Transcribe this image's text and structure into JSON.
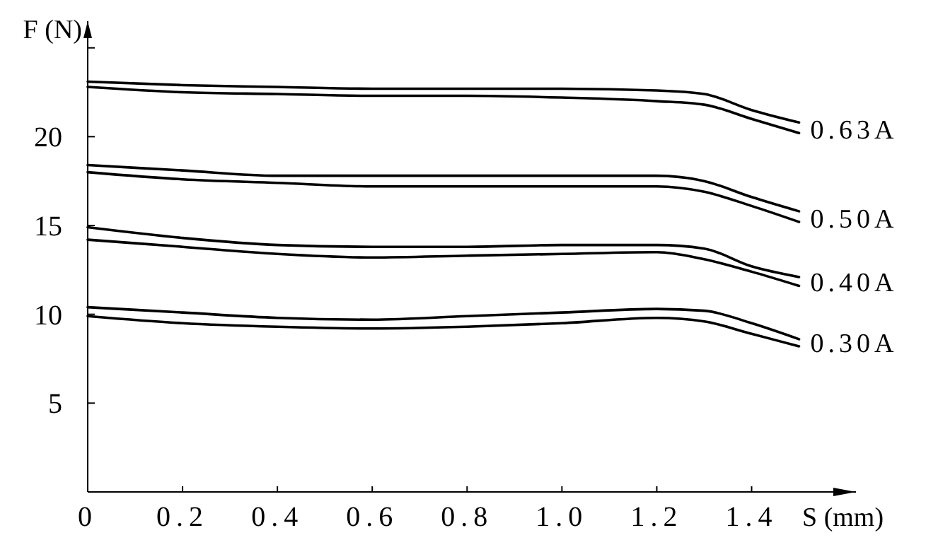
{
  "chart_data": {
    "type": "line",
    "xlabel": "S (mm)",
    "ylabel": "F (N)",
    "x": [
      0,
      0.2,
      0.4,
      0.6,
      0.8,
      1.0,
      1.2,
      1.3,
      1.4,
      1.5
    ],
    "xlim": [
      0,
      1.62
    ],
    "ylim": [
      0,
      26.5
    ],
    "xticks": [
      0,
      0.2,
      0.4,
      0.6,
      0.8,
      {
        "value": 1.0,
        "label": "1.0"
      },
      1.2,
      1.4
    ],
    "yticks": [
      5,
      10,
      15,
      20,
      {
        "value": 25,
        "label": null
      }
    ],
    "grid": false,
    "marker": "none",
    "line_style": "solid",
    "series": [
      {
        "color": "#000000",
        "values": [
          23.1,
          22.9,
          22.8,
          22.7,
          22.7,
          22.7,
          22.6,
          22.4,
          21.5,
          20.8
        ]
      },
      {
        "name": "0.63A",
        "color": "#000000",
        "values": [
          22.8,
          22.5,
          22.4,
          22.3,
          22.3,
          22.2,
          22.0,
          21.8,
          21.0,
          20.2
        ]
      },
      {
        "color": "#000000",
        "values": [
          18.4,
          18.1,
          17.8,
          17.8,
          17.8,
          17.8,
          17.8,
          17.5,
          16.6,
          15.8
        ]
      },
      {
        "name": "0.50A",
        "color": "#000000",
        "values": [
          18.0,
          17.6,
          17.4,
          17.2,
          17.2,
          17.2,
          17.2,
          16.9,
          16.1,
          15.2
        ]
      },
      {
        "color": "#000000",
        "values": [
          14.9,
          14.3,
          13.9,
          13.8,
          13.8,
          13.9,
          13.9,
          13.7,
          12.7,
          12.1
        ]
      },
      {
        "name": "0.40A",
        "color": "#000000",
        "values": [
          14.2,
          13.8,
          13.4,
          13.2,
          13.3,
          13.4,
          13.5,
          13.1,
          12.4,
          11.6
        ]
      },
      {
        "color": "#000000",
        "values": [
          10.4,
          10.1,
          9.8,
          9.7,
          9.9,
          10.1,
          10.3,
          10.2,
          9.5,
          8.6
        ]
      },
      {
        "name": "0.30A",
        "color": "#000000",
        "values": [
          9.9,
          9.5,
          9.3,
          9.2,
          9.3,
          9.5,
          9.8,
          9.6,
          8.9,
          8.2
        ]
      }
    ]
  }
}
